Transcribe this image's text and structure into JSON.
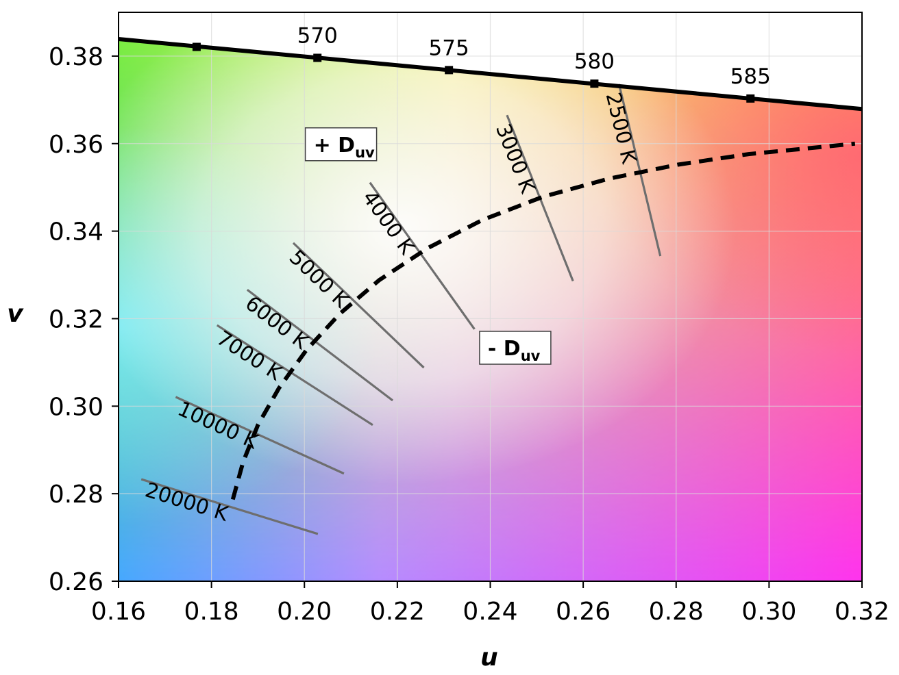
{
  "chart_data": {
    "type": "line",
    "title": "",
    "xlabel": "u",
    "ylabel": "v",
    "xlim": [
      0.16,
      0.32
    ],
    "ylim": [
      0.26,
      0.39
    ],
    "x_ticks": [
      "0.16",
      "0.18",
      "0.20",
      "0.22",
      "0.24",
      "0.26",
      "0.28",
      "0.30",
      "0.32"
    ],
    "y_ticks": [
      "0.26",
      "0.28",
      "0.30",
      "0.32",
      "0.34",
      "0.36",
      "0.38"
    ],
    "grid": true,
    "spectral_locus": {
      "points": [
        [
          0.16,
          0.3839
        ],
        [
          0.32,
          0.3679
        ]
      ],
      "markers": [
        {
          "u": 0.1768,
          "v": 0.3821,
          "label": ""
        },
        {
          "u": 0.2028,
          "v": 0.3796,
          "label": "570"
        },
        {
          "u": 0.2311,
          "v": 0.3768,
          "label": "575"
        },
        {
          "u": 0.2624,
          "v": 0.3737,
          "label": "580"
        },
        {
          "u": 0.296,
          "v": 0.3703,
          "label": "585"
        }
      ]
    },
    "planckian_locus": {
      "style": "dashed",
      "points": [
        [
          0.1846,
          0.2787
        ],
        [
          0.1868,
          0.2872
        ],
        [
          0.19,
          0.2957
        ],
        [
          0.1945,
          0.3041
        ],
        [
          0.2004,
          0.3128
        ],
        [
          0.2076,
          0.3211
        ],
        [
          0.2161,
          0.3288
        ],
        [
          0.2265,
          0.3361
        ],
        [
          0.2384,
          0.3426
        ],
        [
          0.2515,
          0.3479
        ],
        [
          0.2656,
          0.352
        ],
        [
          0.2804,
          0.3552
        ],
        [
          0.2956,
          0.3576
        ],
        [
          0.311,
          0.3592
        ],
        [
          0.3185,
          0.36
        ]
      ]
    },
    "isotherms": [
      {
        "label": "2500 K",
        "from": [
          0.2677,
          0.3736
        ],
        "to": [
          0.2766,
          0.3343
        ]
      },
      {
        "label": "3000 K",
        "from": [
          0.2436,
          0.3665
        ],
        "to": [
          0.2578,
          0.3286
        ]
      },
      {
        "label": "4000 K",
        "from": [
          0.2141,
          0.3511
        ],
        "to": [
          0.2366,
          0.3176
        ]
      },
      {
        "label": "5000 K",
        "from": [
          0.1976,
          0.3373
        ],
        "to": [
          0.2257,
          0.3088
        ]
      },
      {
        "label": "6000 K",
        "from": [
          0.1877,
          0.3266
        ],
        "to": [
          0.219,
          0.3013
        ]
      },
      {
        "label": "7000 K",
        "from": [
          0.1812,
          0.3185
        ],
        "to": [
          0.2147,
          0.2957
        ]
      },
      {
        "label": "10000 K",
        "from": [
          0.1723,
          0.3021
        ],
        "to": [
          0.2085,
          0.2846
        ]
      },
      {
        "label": "20000 K",
        "from": [
          0.1649,
          0.2833
        ],
        "to": [
          0.2029,
          0.2708
        ]
      }
    ],
    "annotations": {
      "plus_duv": {
        "prefix": "+ D",
        "sub": "uv"
      },
      "minus_duv": {
        "prefix": "- D",
        "sub": "uv"
      }
    },
    "colors": {
      "locus": "#000000",
      "isotherm": "#6e6e6e",
      "grid": "#d9d9d9",
      "box_border": "#404040"
    }
  }
}
